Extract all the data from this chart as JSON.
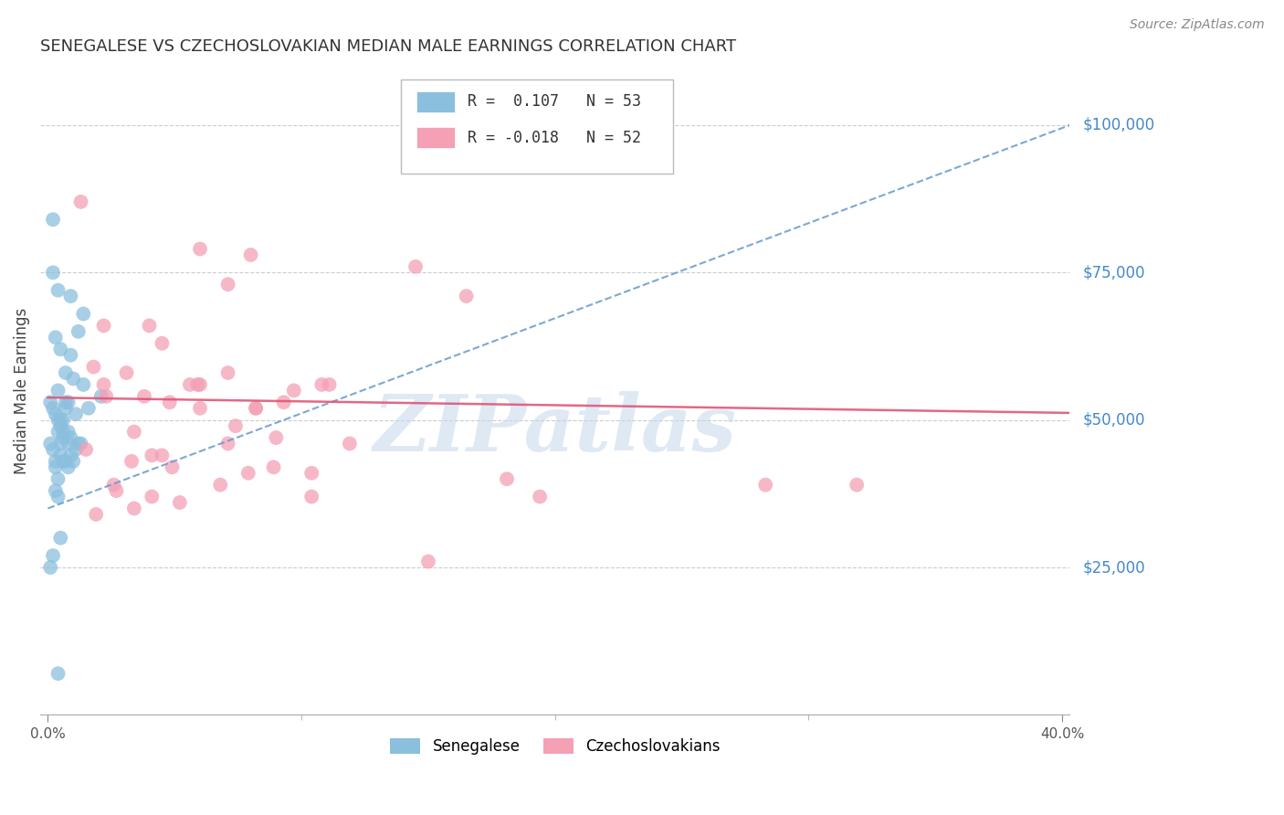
{
  "title": "SENEGALESE VS CZECHOSLOVAKIAN MEDIAN MALE EARNINGS CORRELATION CHART",
  "source": "Source: ZipAtlas.com",
  "ylabel": "Median Male Earnings",
  "ytick_labels": [
    "$25,000",
    "$50,000",
    "$75,000",
    "$100,000"
  ],
  "ytick_values": [
    25000,
    50000,
    75000,
    100000
  ],
  "xlim": [
    -0.003,
    0.403
  ],
  "ylim": [
    0,
    110000
  ],
  "blue_color": "#8bbfde",
  "pink_color": "#f4a0b5",
  "blue_line_color": "#6699cc",
  "pink_line_color": "#e05878",
  "right_label_color": "#4488cc",
  "watermark_color": "#c5d8ec",
  "watermark": "ZIPatlas",
  "legend_r1": "R =  0.107   N = 53",
  "legend_r2": "R = -0.018   N = 52",
  "blue_scatter_x": [
    0.002,
    0.009,
    0.014,
    0.002,
    0.004,
    0.001,
    0.002,
    0.003,
    0.003,
    0.004,
    0.004,
    0.005,
    0.005,
    0.005,
    0.006,
    0.006,
    0.007,
    0.007,
    0.008,
    0.008,
    0.009,
    0.009,
    0.01,
    0.01,
    0.011,
    0.011,
    0.012,
    0.012,
    0.013,
    0.014,
    0.001,
    0.002,
    0.003,
    0.004,
    0.005,
    0.006,
    0.007,
    0.008,
    0.009,
    0.003,
    0.004,
    0.005,
    0.006,
    0.007,
    0.008,
    0.002,
    0.003,
    0.004,
    0.005,
    0.016,
    0.021,
    0.001,
    0.004
  ],
  "blue_scatter_y": [
    84000,
    71000,
    56000,
    75000,
    72000,
    53000,
    52000,
    64000,
    51000,
    50000,
    48000,
    50000,
    49000,
    62000,
    48000,
    47000,
    52000,
    58000,
    53000,
    48000,
    47000,
    61000,
    43000,
    57000,
    51000,
    45000,
    46000,
    65000,
    46000,
    68000,
    46000,
    45000,
    43000,
    55000,
    44000,
    43000,
    53000,
    42000,
    44000,
    38000,
    37000,
    46000,
    50000,
    43000,
    46000,
    27000,
    42000,
    40000,
    30000,
    52000,
    54000,
    25000,
    7000
  ],
  "pink_scatter_x": [
    0.013,
    0.06,
    0.022,
    0.08,
    0.071,
    0.04,
    0.056,
    0.108,
    0.145,
    0.045,
    0.018,
    0.023,
    0.031,
    0.038,
    0.048,
    0.059,
    0.071,
    0.082,
    0.097,
    0.111,
    0.015,
    0.026,
    0.033,
    0.041,
    0.049,
    0.06,
    0.071,
    0.082,
    0.093,
    0.104,
    0.019,
    0.027,
    0.034,
    0.041,
    0.052,
    0.068,
    0.079,
    0.089,
    0.104,
    0.119,
    0.022,
    0.034,
    0.045,
    0.06,
    0.074,
    0.09,
    0.181,
    0.194,
    0.283,
    0.165,
    0.15,
    0.319
  ],
  "pink_scatter_y": [
    87000,
    79000,
    66000,
    78000,
    73000,
    66000,
    56000,
    56000,
    76000,
    63000,
    59000,
    54000,
    58000,
    54000,
    53000,
    56000,
    58000,
    52000,
    55000,
    56000,
    45000,
    39000,
    43000,
    44000,
    42000,
    56000,
    46000,
    52000,
    53000,
    41000,
    34000,
    38000,
    35000,
    37000,
    36000,
    39000,
    41000,
    42000,
    37000,
    46000,
    56000,
    48000,
    44000,
    52000,
    49000,
    47000,
    40000,
    37000,
    39000,
    71000,
    26000,
    39000
  ],
  "blue_trend_x": [
    0.0,
    0.403
  ],
  "blue_trend_y": [
    35000,
    100000
  ],
  "pink_trend_x": [
    0.0,
    0.403
  ],
  "pink_trend_y": [
    53800,
    51200
  ]
}
